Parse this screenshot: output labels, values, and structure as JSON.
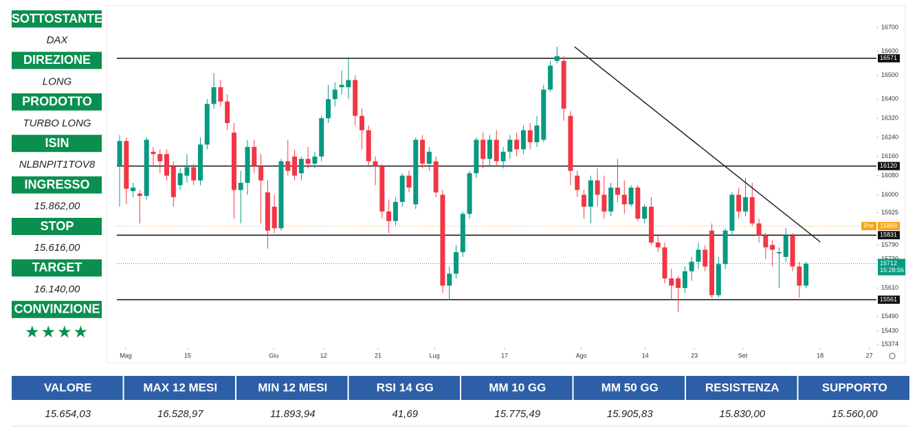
{
  "sidebar": [
    {
      "label": "SOTTOSTANTE",
      "value": "DAX"
    },
    {
      "label": "DIREZIONE",
      "value": "LONG"
    },
    {
      "label": "PRODOTTO",
      "value": "TURBO LONG"
    },
    {
      "label": "ISIN",
      "value": "NLBNPIT1TOV8"
    },
    {
      "label": "INGRESSO",
      "value": "15.862,00"
    },
    {
      "label": "STOP",
      "value": "15.616,00"
    },
    {
      "label": "TARGET",
      "value": "16.140,00"
    },
    {
      "label": "CONVINZIONE",
      "value": "★★★★"
    }
  ],
  "chart_data": {
    "type": "candlestick",
    "up_color": "#089981",
    "down_color": "#f23645",
    "open": [
      16120,
      16225,
      16015,
      16005,
      15995,
      16180,
      16170,
      16170,
      16120,
      16040,
      16080,
      16115,
      16060,
      16210,
      16380,
      16450,
      16390,
      16260,
      16020,
      16050,
      16200,
      16120,
      16010,
      15950,
      15860,
      16140,
      16160,
      16090,
      16150,
      16130,
      16160,
      16320,
      16400,
      16450,
      16450,
      16480,
      16330,
      16270,
      16140,
      16120,
      15930,
      15890,
      15970,
      16080,
      15960,
      16230,
      16130,
      16140,
      16000,
      15620,
      15670,
      15760,
      15920,
      16090,
      16230,
      16150,
      16230,
      16140,
      16180,
      16230,
      16190,
      16270,
      16220,
      16230,
      16440,
      16560,
      16560,
      16330,
      16080,
      16000,
      15950,
      16060,
      16000,
      15930,
      16030,
      16000,
      15960,
      16030,
      15900,
      15950,
      15800,
      15780,
      15650,
      15650,
      15610,
      15680,
      15720,
      15770,
      15850,
      15580,
      15710,
      15850,
      16000,
      15930,
      15990,
      15880,
      15830,
      15790,
      15755,
      15740,
      15830,
      15700,
      15620
    ],
    "high": [
      16250,
      16240,
      16050,
      16020,
      16240,
      16200,
      16190,
      16190,
      16140,
      16110,
      16170,
      16130,
      16240,
      16400,
      16510,
      16480,
      16420,
      16300,
      16100,
      16230,
      16230,
      16170,
      16060,
      16000,
      16150,
      16230,
      16190,
      16160,
      16200,
      16180,
      16330,
      16460,
      16470,
      16520,
      16575,
      16500,
      16360,
      16290,
      16160,
      16130,
      15980,
      15990,
      16090,
      16100,
      16240,
      16250,
      16200,
      16160,
      16020,
      15700,
      15790,
      15930,
      16100,
      16240,
      16260,
      16250,
      16270,
      16200,
      16250,
      16260,
      16290,
      16300,
      16330,
      16460,
      16560,
      16620,
      16580,
      16350,
      16100,
      16020,
      16080,
      16110,
      16080,
      16050,
      16150,
      16060,
      16040,
      16040,
      15960,
      15990,
      15830,
      15800,
      15690,
      15660,
      15700,
      15740,
      15800,
      15790,
      15880,
      15740,
      15860,
      16010,
      16030,
      16070,
      16050,
      15900,
      15840,
      15810,
      15780,
      15860,
      15840,
      15720,
      15720
    ],
    "low": [
      15950,
      15960,
      15990,
      15880,
      15980,
      16120,
      16090,
      16060,
      15950,
      16020,
      16050,
      16040,
      16040,
      16190,
      16360,
      16370,
      16270,
      15900,
      15880,
      16000,
      16090,
      15880,
      15775,
      15840,
      15850,
      16080,
      16060,
      16060,
      16110,
      16110,
      16140,
      16300,
      16370,
      16420,
      16400,
      16290,
      16190,
      16120,
      16040,
      15900,
      15840,
      15870,
      15950,
      16010,
      15940,
      16110,
      16100,
      15990,
      15590,
      15560,
      15650,
      15740,
      15900,
      16070,
      16110,
      16120,
      16120,
      16110,
      16150,
      16160,
      16170,
      16190,
      16200,
      16220,
      16430,
      16550,
      16310,
      16040,
      15990,
      15900,
      15880,
      15950,
      15900,
      15910,
      15970,
      15920,
      15950,
      15890,
      15880,
      15790,
      15760,
      15630,
      15560,
      15510,
      15590,
      15640,
      15690,
      15680,
      15570,
      15570,
      15690,
      15830,
      15900,
      15910,
      15870,
      15800,
      15730,
      15700,
      15610,
      15720,
      15680,
      15570,
      15610
    ],
    "close": [
      16225,
      16025,
      16030,
      15995,
      16230,
      16170,
      16140,
      16080,
      15990,
      16090,
      16115,
      16060,
      16210,
      16380,
      16450,
      16390,
      16300,
      16020,
      16050,
      16200,
      16120,
      16060,
      15850,
      15860,
      16140,
      16100,
      16080,
      16150,
      16130,
      16160,
      16320,
      16400,
      16440,
      16460,
      16480,
      16330,
      16270,
      16140,
      16120,
      15930,
      15890,
      15970,
      16080,
      16030,
      16230,
      16130,
      16180,
      16010,
      15620,
      15670,
      15760,
      15920,
      16090,
      16230,
      16150,
      16230,
      16140,
      16180,
      16230,
      16190,
      16270,
      16220,
      16290,
      16440,
      16540,
      16580,
      16360,
      16100,
      16020,
      15950,
      16060,
      16000,
      15930,
      16030,
      16000,
      15960,
      16030,
      15900,
      15950,
      15800,
      15780,
      15650,
      15620,
      15610,
      15680,
      15720,
      15770,
      15700,
      15580,
      15710,
      15850,
      16000,
      15930,
      15990,
      15880,
      15830,
      15780,
      15770,
      15760,
      15830,
      15700,
      15620,
      15712
    ],
    "xlim": [
      -0.41,
      112.46
    ],
    "ylim": [
      15363,
      16786
    ],
    "xticks": [
      {
        "value": 0.9,
        "label": "Mag"
      },
      {
        "value": 10.1,
        "label": "15"
      },
      {
        "value": 22.9,
        "label": "Giu"
      },
      {
        "value": 30.3,
        "label": "12"
      },
      {
        "value": 38.4,
        "label": "21"
      },
      {
        "value": 46.8,
        "label": "Lug"
      },
      {
        "value": 57.2,
        "label": "17"
      },
      {
        "value": 68.6,
        "label": "Ago"
      },
      {
        "value": 78.1,
        "label": "14"
      },
      {
        "value": 85.4,
        "label": "23"
      },
      {
        "value": 92.6,
        "label": "Set"
      },
      {
        "value": 104.1,
        "label": "18"
      },
      {
        "value": 111.4,
        "label": "27"
      }
    ],
    "yticks": [
      16700,
      16600,
      16500,
      16400,
      16320,
      16240,
      16160,
      16080,
      16000,
      15925,
      15790,
      15730,
      15610,
      15490,
      15430,
      15374
    ],
    "levels": [
      16571,
      16120,
      15831,
      15561
    ],
    "trendline": {
      "x": [
        67.6,
        104.1
      ],
      "y": [
        16619,
        15803
      ]
    },
    "premarket": {
      "label": "Pre",
      "value": 15869,
      "color": "#f7a21b"
    },
    "last": {
      "value": 15712,
      "time": "15:28:56",
      "color": "#089981"
    }
  },
  "table": {
    "headers": [
      "VALORE",
      "MAX 12 MESI",
      "MIN 12 MESI",
      "RSI 14 GG",
      "MM 10 GG",
      "MM 50 GG",
      "RESISTENZA",
      "SUPPORTO"
    ],
    "values": [
      "15.654,03",
      "16.528,97",
      "11.893,94",
      "41,69",
      "15.775,49",
      "15.905,83",
      "15.830,00",
      "15.560,00"
    ]
  }
}
